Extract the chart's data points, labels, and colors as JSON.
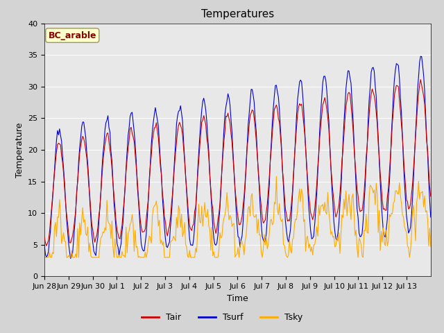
{
  "title": "Temperatures",
  "xlabel": "Time",
  "ylabel": "Temperature",
  "annotation": "BC_arable",
  "ylim": [
    0,
    40
  ],
  "plot_bg": "#e8e8e8",
  "fig_bg": "#d4d4d4",
  "grid_color": "white",
  "tair_color": "#cc0000",
  "tsurf_color": "#0000cc",
  "tsky_color": "#ffaa00",
  "x_ticks": [
    "Jun 28",
    "Jun 29",
    "Jun 30",
    "Jul 1",
    "Jul 2",
    "Jul 3",
    "Jul 4",
    "Jul 5",
    "Jul 6",
    "Jul 7",
    "Jul 8",
    "Jul 9",
    "Jul 10",
    "Jul 11",
    "Jul 12",
    "Jul 13"
  ],
  "n_days": 16,
  "title_fontsize": 11,
  "label_fontsize": 9,
  "tick_fontsize": 8,
  "legend_fontsize": 9
}
